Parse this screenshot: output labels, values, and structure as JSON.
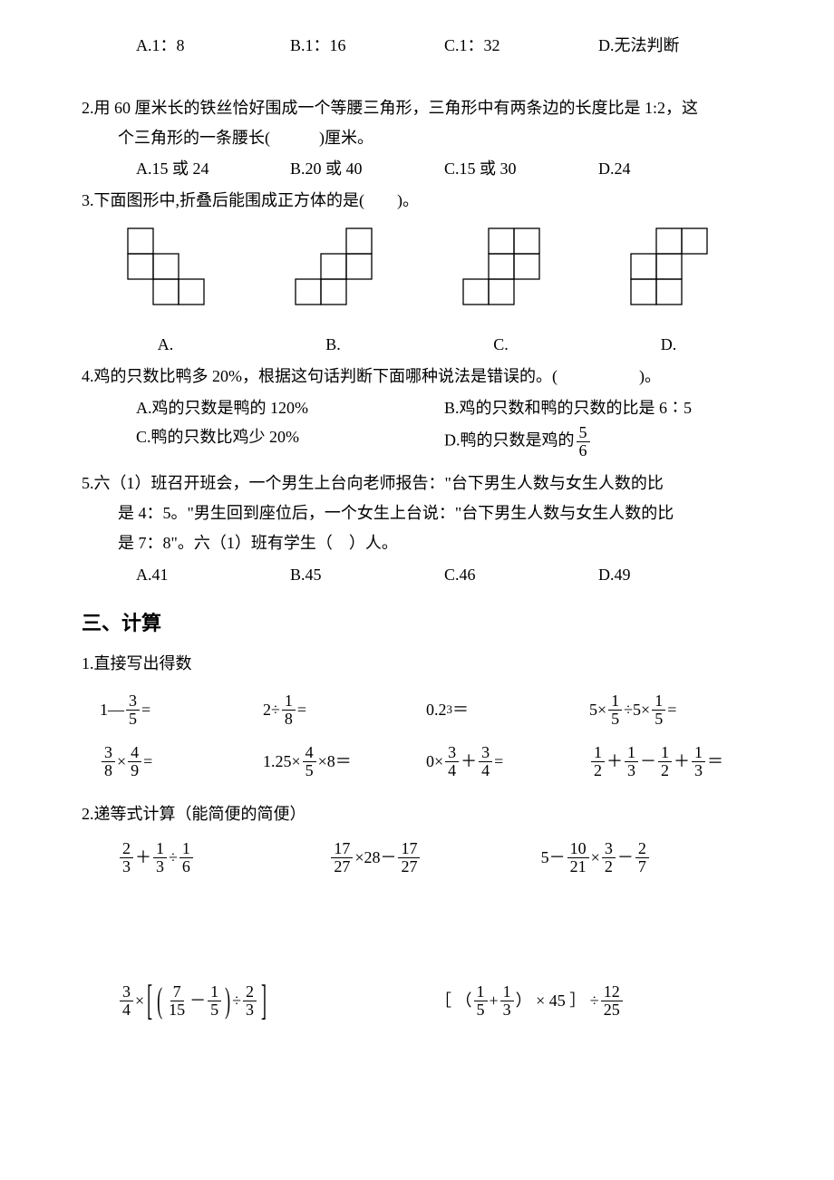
{
  "q1": {
    "options": {
      "a": "A.1：8",
      "b": "B.1：16",
      "c": "C.1：32",
      "d": "D.无法判断"
    }
  },
  "q2": {
    "text1": "2.用 60 厘米长的铁丝恰好围成一个等腰三角形，三角形中有两条边的长度比是 1:2，这",
    "text2": "个三角形的一条腰长(　　　)厘米。",
    "options": {
      "a": "A.15 或 24",
      "b": "B.20 或 40",
      "c": "C.15 或 30",
      "d": "D.24"
    }
  },
  "q3": {
    "text": "3.下面图形中,折叠后能围成正方体的是(　　)。",
    "labels": {
      "a": "A.",
      "b": "B.",
      "c": "C.",
      "d": "D."
    },
    "fig_style": {
      "cell": 28,
      "stroke": "#000000",
      "stroke_width": 1.3
    }
  },
  "q4": {
    "text": "4.鸡的只数比鸭多 20%，根据这句话判断下面哪种说法是错误的。(　　　　　)。",
    "optA": "A.鸡的只数是鸭的 120%",
    "optB": "B.鸡的只数和鸭的只数的比是 6∶5",
    "optC": "C.鸭的只数比鸡少 20%",
    "optD_pre": "D.鸭的只数是鸡的",
    "optD_num": "5",
    "optD_den": "6"
  },
  "q5": {
    "line1": "5.六（1）班召开班会，一个男生上台向老师报告：\"台下男生人数与女生人数的比",
    "line2": "是 4：5。\"男生回到座位后，一个女生上台说：\"台下男生人数与女生人数的比",
    "line3": "是 7：8\"。六（1）班有学生（　）人。",
    "options": {
      "a": "A.41",
      "b": "B.45",
      "c": "C.46",
      "d": "D.49"
    }
  },
  "section3_title": "三、计算",
  "calc1": {
    "title": "1.直接写出得数",
    "r1c1_pre": "1—",
    "r1c1_n": "3",
    "r1c1_d": "5",
    "r1c1_post": "=",
    "r1c2_pre": "2÷",
    "r1c2_n": "1",
    "r1c2_d": "8",
    "r1c2_post": "=",
    "r1c3_base": "0.2",
    "r1c3_exp": "3",
    "r1c3_post": "＝",
    "r1c4_pre": "5×",
    "r1c4_n1": "1",
    "r1c4_d1": "5",
    "r1c4_mid": "÷5×",
    "r1c4_n2": "1",
    "r1c4_d2": "5",
    "r1c4_post": "=",
    "r2c1_n1": "3",
    "r2c1_d1": "8",
    "r2c1_mid": "×",
    "r2c1_n2": "4",
    "r2c1_d2": "9",
    "r2c1_post": "=",
    "r2c2_pre": "1.25×",
    "r2c2_n": "4",
    "r2c2_d": "5",
    "r2c2_post": "×8＝",
    "r2c3_pre": "0×",
    "r2c3_n1": "3",
    "r2c3_d1": "4",
    "r2c3_mid": "＋",
    "r2c3_n2": "3",
    "r2c3_d2": "4",
    "r2c3_post": "=",
    "r2c4_n1": "1",
    "r2c4_d1": "2",
    "r2c4_s1": "＋",
    "r2c4_n2": "1",
    "r2c4_d2": "3",
    "r2c4_s2": "－",
    "r2c4_n3": "1",
    "r2c4_d3": "2",
    "r2c4_s3": "＋",
    "r2c4_n4": "1",
    "r2c4_d4": "3",
    "r2c4_post": "＝"
  },
  "calc2": {
    "title": "2.递等式计算（能简便的简便）",
    "e1_n1": "2",
    "e1_d1": "3",
    "e1_s1": "＋",
    "e1_n2": "1",
    "e1_d2": "3",
    "e1_s2": "÷",
    "e1_n3": "1",
    "e1_d3": "6",
    "e2_n1": "17",
    "e2_d1": "27",
    "e2_s1": "×28－",
    "e2_n2": "17",
    "e2_d2": "27",
    "e3_pre": "5－",
    "e3_n1": "10",
    "e3_d1": "21",
    "e3_s1": "×",
    "e3_n2": "3",
    "e3_d2": "2",
    "e3_s2": "－",
    "e3_n3": "2",
    "e3_d3": "7",
    "e4_n1": "3",
    "e4_d1": "4",
    "e4_s1": "×",
    "e4_n2": "7",
    "e4_d2": "15",
    "e4_s2": "－",
    "e4_n3": "1",
    "e4_d3": "5",
    "e4_s3": "÷",
    "e4_n4": "2",
    "e4_d4": "3",
    "e5_pre": "［ （",
    "e5_n1": "1",
    "e5_d1": "5",
    "e5_s1": "+",
    "e5_n2": "1",
    "e5_d2": "3",
    "e5_mid": "） × 45 ］ ÷",
    "e5_n3": "12",
    "e5_d3": "25"
  }
}
